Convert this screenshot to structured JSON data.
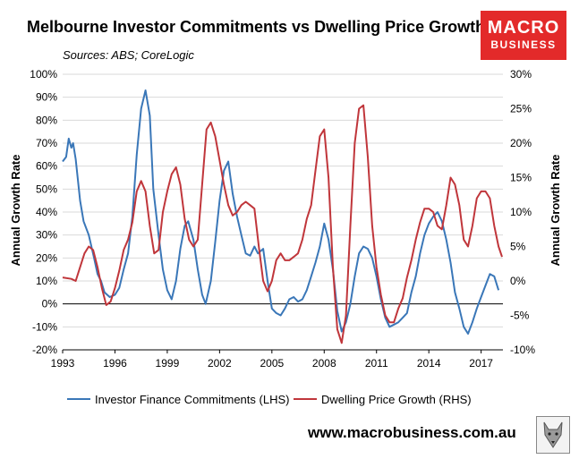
{
  "header": {
    "title": "Melbourne Investor Commitments vs Dwelling Price Growth",
    "subtitle": "Sources: ABS; CoreLogic",
    "logo_line1": "MACRO",
    "logo_line2": "BUSINESS",
    "website": "www.macrobusiness.com.au"
  },
  "colors": {
    "investor": "#3a77b8",
    "price": "#c0363b",
    "logo_bg": "#e32a2a",
    "grid": "#d9d9d9"
  },
  "chart_data": {
    "type": "line",
    "title": "Melbourne Investor Commitments vs Dwelling Price Growth",
    "subtitle": "Sources: ABS; CoreLogic",
    "ylabel_left": "Annual Growth Rate",
    "ylabel_right": "Annual Growth Rate",
    "ylim_left": [
      -20,
      100
    ],
    "ylim_right": [
      -10,
      30
    ],
    "xlim": [
      1993,
      2018.25
    ],
    "left_ticks": [
      "-20%",
      "-10%",
      "0%",
      "10%",
      "20%",
      "30%",
      "40%",
      "50%",
      "60%",
      "70%",
      "80%",
      "90%",
      "100%"
    ],
    "right_ticks": [
      "-10%",
      "-5%",
      "0%",
      "5%",
      "10%",
      "15%",
      "20%",
      "25%",
      "30%"
    ],
    "x_ticks": [
      "1993",
      "1996",
      "1999",
      "2002",
      "2005",
      "2008",
      "2011",
      "2014",
      "2017"
    ],
    "grid": "horizontal",
    "legend_position": "bottom",
    "series": [
      {
        "name": "Investor Finance Commitments (LHS)",
        "axis": "left",
        "points": [
          [
            1993.0,
            62
          ],
          [
            1993.2,
            64
          ],
          [
            1993.35,
            72
          ],
          [
            1993.5,
            68
          ],
          [
            1993.6,
            70
          ],
          [
            1993.75,
            63
          ],
          [
            1994.0,
            45
          ],
          [
            1994.2,
            36
          ],
          [
            1994.5,
            30
          ],
          [
            1994.8,
            20
          ],
          [
            1995.0,
            13
          ],
          [
            1995.2,
            10
          ],
          [
            1995.4,
            5
          ],
          [
            1995.7,
            3
          ],
          [
            1996.0,
            4
          ],
          [
            1996.25,
            7
          ],
          [
            1996.5,
            15
          ],
          [
            1996.75,
            22
          ],
          [
            1997.0,
            38
          ],
          [
            1997.25,
            65
          ],
          [
            1997.5,
            85
          ],
          [
            1997.75,
            93
          ],
          [
            1998.0,
            82
          ],
          [
            1998.2,
            50
          ],
          [
            1998.5,
            30
          ],
          [
            1998.75,
            15
          ],
          [
            1999.0,
            6
          ],
          [
            1999.25,
            2
          ],
          [
            1999.5,
            10
          ],
          [
            1999.75,
            24
          ],
          [
            2000.0,
            34
          ],
          [
            2000.2,
            36
          ],
          [
            2000.5,
            28
          ],
          [
            2000.75,
            15
          ],
          [
            2001.0,
            4
          ],
          [
            2001.2,
            0
          ],
          [
            2001.5,
            10
          ],
          [
            2001.75,
            27
          ],
          [
            2002.0,
            45
          ],
          [
            2002.25,
            58
          ],
          [
            2002.5,
            62
          ],
          [
            2002.75,
            48
          ],
          [
            2003.0,
            38
          ],
          [
            2003.25,
            30
          ],
          [
            2003.5,
            22
          ],
          [
            2003.75,
            21
          ],
          [
            2004.0,
            25
          ],
          [
            2004.2,
            22
          ],
          [
            2004.5,
            24
          ],
          [
            2004.75,
            10
          ],
          [
            2005.0,
            -2
          ],
          [
            2005.25,
            -4
          ],
          [
            2005.5,
            -5
          ],
          [
            2005.75,
            -2
          ],
          [
            2006.0,
            2
          ],
          [
            2006.25,
            3
          ],
          [
            2006.5,
            1
          ],
          [
            2006.75,
            2
          ],
          [
            2007.0,
            6
          ],
          [
            2007.25,
            12
          ],
          [
            2007.5,
            18
          ],
          [
            2007.75,
            25
          ],
          [
            2008.0,
            35
          ],
          [
            2008.25,
            28
          ],
          [
            2008.5,
            15
          ],
          [
            2008.75,
            -3
          ],
          [
            2009.0,
            -12
          ],
          [
            2009.25,
            -8
          ],
          [
            2009.5,
            0
          ],
          [
            2009.75,
            12
          ],
          [
            2010.0,
            22
          ],
          [
            2010.25,
            25
          ],
          [
            2010.5,
            24
          ],
          [
            2010.75,
            20
          ],
          [
            2011.0,
            12
          ],
          [
            2011.25,
            2
          ],
          [
            2011.5,
            -6
          ],
          [
            2011.75,
            -10
          ],
          [
            2012.0,
            -9
          ],
          [
            2012.25,
            -8
          ],
          [
            2012.5,
            -6
          ],
          [
            2012.75,
            -4
          ],
          [
            2013.0,
            5
          ],
          [
            2013.25,
            12
          ],
          [
            2013.5,
            22
          ],
          [
            2013.75,
            30
          ],
          [
            2014.0,
            35
          ],
          [
            2014.25,
            38
          ],
          [
            2014.5,
            40
          ],
          [
            2014.75,
            36
          ],
          [
            2015.0,
            28
          ],
          [
            2015.25,
            18
          ],
          [
            2015.5,
            5
          ],
          [
            2015.75,
            -2
          ],
          [
            2016.0,
            -10
          ],
          [
            2016.25,
            -13
          ],
          [
            2016.5,
            -8
          ],
          [
            2016.75,
            -2
          ],
          [
            2017.0,
            3
          ],
          [
            2017.25,
            8
          ],
          [
            2017.5,
            13
          ],
          [
            2017.75,
            12
          ],
          [
            2018.0,
            6
          ]
        ]
      },
      {
        "name": "Dwelling Price Growth (RHS)",
        "axis": "right",
        "points": [
          [
            1993.0,
            0.5
          ],
          [
            1993.5,
            0.3
          ],
          [
            1993.75,
            0.0
          ],
          [
            1994.0,
            2.0
          ],
          [
            1994.25,
            4.0
          ],
          [
            1994.5,
            5.0
          ],
          [
            1994.75,
            4.5
          ],
          [
            1995.0,
            2.0
          ],
          [
            1995.25,
            -1.0
          ],
          [
            1995.5,
            -3.5
          ],
          [
            1995.75,
            -3.0
          ],
          [
            1996.0,
            -1.0
          ],
          [
            1996.25,
            1.5
          ],
          [
            1996.5,
            4.5
          ],
          [
            1996.75,
            6.0
          ],
          [
            1997.0,
            8.5
          ],
          [
            1997.25,
            13.0
          ],
          [
            1997.5,
            14.5
          ],
          [
            1997.75,
            13.0
          ],
          [
            1998.0,
            8.0
          ],
          [
            1998.25,
            4.0
          ],
          [
            1998.5,
            4.5
          ],
          [
            1998.75,
            10.0
          ],
          [
            1999.0,
            13.0
          ],
          [
            1999.25,
            15.5
          ],
          [
            1999.5,
            16.5
          ],
          [
            1999.75,
            14.0
          ],
          [
            2000.0,
            9.0
          ],
          [
            2000.25,
            6.0
          ],
          [
            2000.5,
            5.0
          ],
          [
            2000.75,
            6.0
          ],
          [
            2001.0,
            14.0
          ],
          [
            2001.25,
            22.0
          ],
          [
            2001.5,
            23.0
          ],
          [
            2001.75,
            21.0
          ],
          [
            2002.0,
            17.5
          ],
          [
            2002.25,
            14.0
          ],
          [
            2002.5,
            11.0
          ],
          [
            2002.75,
            9.5
          ],
          [
            2003.0,
            10.0
          ],
          [
            2003.25,
            11.0
          ],
          [
            2003.5,
            11.5
          ],
          [
            2003.75,
            11.0
          ],
          [
            2004.0,
            10.5
          ],
          [
            2004.25,
            5.0
          ],
          [
            2004.5,
            0.0
          ],
          [
            2004.75,
            -1.5
          ],
          [
            2005.0,
            0.0
          ],
          [
            2005.25,
            3.0
          ],
          [
            2005.5,
            4.0
          ],
          [
            2005.75,
            3.0
          ],
          [
            2006.0,
            3.0
          ],
          [
            2006.25,
            3.5
          ],
          [
            2006.5,
            4.0
          ],
          [
            2006.75,
            6.0
          ],
          [
            2007.0,
            9.0
          ],
          [
            2007.25,
            11.0
          ],
          [
            2007.5,
            16.0
          ],
          [
            2007.75,
            21.0
          ],
          [
            2008.0,
            22.0
          ],
          [
            2008.25,
            15.0
          ],
          [
            2008.5,
            2.0
          ],
          [
            2008.75,
            -7.0
          ],
          [
            2009.0,
            -9.0
          ],
          [
            2009.25,
            -5.0
          ],
          [
            2009.5,
            8.0
          ],
          [
            2009.75,
            20.0
          ],
          [
            2010.0,
            25.0
          ],
          [
            2010.25,
            25.5
          ],
          [
            2010.5,
            18.0
          ],
          [
            2010.75,
            8.0
          ],
          [
            2011.0,
            2.0
          ],
          [
            2011.25,
            -2.0
          ],
          [
            2011.5,
            -5.0
          ],
          [
            2011.75,
            -6.0
          ],
          [
            2012.0,
            -6.0
          ],
          [
            2012.25,
            -4.0
          ],
          [
            2012.5,
            -2.5
          ],
          [
            2012.75,
            0.5
          ],
          [
            2013.0,
            3.0
          ],
          [
            2013.25,
            6.0
          ],
          [
            2013.5,
            8.5
          ],
          [
            2013.75,
            10.5
          ],
          [
            2014.0,
            10.5
          ],
          [
            2014.25,
            10.0
          ],
          [
            2014.5,
            8.0
          ],
          [
            2014.75,
            7.5
          ],
          [
            2015.0,
            11.0
          ],
          [
            2015.25,
            15.0
          ],
          [
            2015.5,
            14.0
          ],
          [
            2015.75,
            11.0
          ],
          [
            2016.0,
            6.0
          ],
          [
            2016.25,
            5.0
          ],
          [
            2016.5,
            8.0
          ],
          [
            2016.75,
            12.0
          ],
          [
            2017.0,
            13.0
          ],
          [
            2017.25,
            13.0
          ],
          [
            2017.5,
            12.0
          ],
          [
            2017.75,
            8.0
          ],
          [
            2018.0,
            5.0
          ],
          [
            2018.2,
            3.5
          ]
        ]
      }
    ]
  }
}
